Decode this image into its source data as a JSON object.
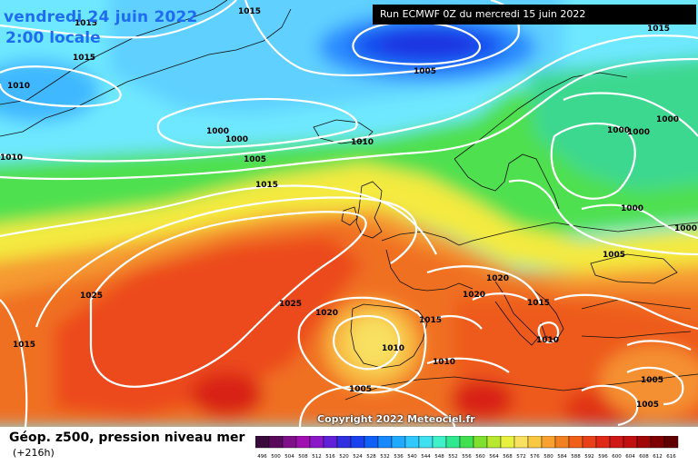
{
  "header": {
    "date": "vendredi 24 juin 2022",
    "local_time": "2:00 locale",
    "run_info": "Run ECMWF 0Z du mercredi 15 juin 2022"
  },
  "copyright": "Copyright 2022 Meteociel.fr",
  "legend": {
    "product": "Géop. z500, pression niveau mer",
    "lead_time": "(+216h)",
    "scale_labels": [
      "496",
      "500",
      "504",
      "508",
      "512",
      "516",
      "520",
      "524",
      "528",
      "532",
      "536",
      "540",
      "544",
      "548",
      "552",
      "556",
      "560",
      "564",
      "568",
      "572",
      "576",
      "580",
      "584",
      "588",
      "592",
      "596",
      "600",
      "604",
      "608",
      "612",
      "616"
    ],
    "scale_colors": [
      "#3a0a3a",
      "#5a0a5a",
      "#80108a",
      "#a010b0",
      "#8a18c8",
      "#6020d8",
      "#3030e0",
      "#1a40f0",
      "#1060f8",
      "#1888ff",
      "#20aaff",
      "#30c8ff",
      "#40e0f0",
      "#40f0c8",
      "#30e890",
      "#40e050",
      "#80e030",
      "#b8e830",
      "#e8f040",
      "#f8e060",
      "#f8c840",
      "#f8a030",
      "#f08020",
      "#f06018",
      "#e84018",
      "#e02818",
      "#d01818",
      "#c01010",
      "#a00808",
      "#800000",
      "#600000"
    ]
  },
  "isobars": [
    {
      "label": "1015",
      "pos": "top-left"
    },
    {
      "label": "1015",
      "pos": "top-left-2"
    },
    {
      "label": "1015",
      "pos": "greenland"
    },
    {
      "label": "1010",
      "pos": "far-left"
    },
    {
      "label": "1005",
      "pos": "low-center"
    },
    {
      "label": "1015",
      "pos": "top-right"
    },
    {
      "label": "1000",
      "pos": "atlantic-1"
    },
    {
      "label": "1000",
      "pos": "atlantic-2"
    },
    {
      "label": "1010",
      "pos": "left-edge"
    },
    {
      "label": "1005",
      "pos": "atlantic-3"
    },
    {
      "label": "1010",
      "pos": "atlantic-4"
    },
    {
      "label": "1015",
      "pos": "atlantic-5"
    },
    {
      "label": "1000",
      "pos": "scandinavia-1"
    },
    {
      "label": "1000",
      "pos": "scandinavia-2"
    },
    {
      "label": "1000",
      "pos": "scandinavia-3"
    },
    {
      "label": "1000",
      "pos": "baltic"
    },
    {
      "label": "1000",
      "pos": "russia"
    },
    {
      "label": "1005",
      "pos": "poland"
    },
    {
      "label": "1020",
      "pos": "alps"
    },
    {
      "label": "1020",
      "pos": "alps-2"
    },
    {
      "label": "1015",
      "pos": "balkans"
    },
    {
      "label": "1025",
      "pos": "azores-west"
    },
    {
      "label": "1025",
      "pos": "azores"
    },
    {
      "label": "1020",
      "pos": "iberia-west"
    },
    {
      "label": "1015",
      "pos": "iberia-east"
    },
    {
      "label": "1010",
      "pos": "iberia-low"
    },
    {
      "label": "1010",
      "pos": "greece"
    },
    {
      "label": "1010",
      "pos": "north-africa"
    },
    {
      "label": "1015",
      "pos": "bottom-left"
    },
    {
      "label": "1005",
      "pos": "sahara"
    },
    {
      "label": "1005",
      "pos": "middle-east"
    },
    {
      "label": "1005",
      "pos": "bottom-center"
    }
  ]
}
